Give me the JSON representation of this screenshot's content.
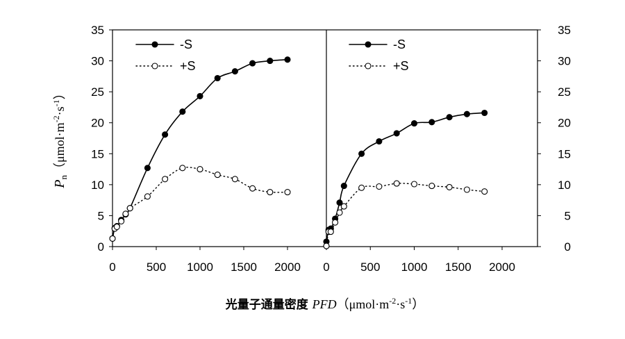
{
  "chart_data": {
    "type": "line",
    "xlabel": {
      "cn": "光量子通量密度 ",
      "italic": "PFD",
      "unit": "（μmol·m",
      "sup1": "-2",
      "mid": "·s",
      "sup2": "-1",
      "end": "）"
    },
    "ylabel": {
      "italic": "P",
      "sub": "n",
      "unit": "（μmol·m",
      "sup1": "-2",
      "mid": "·s",
      "sup2": "-1",
      "end": "）"
    },
    "ylim": [
      0,
      35
    ],
    "yticks": [
      "0",
      "5",
      "10",
      "15",
      "20",
      "25",
      "30",
      "35"
    ],
    "xlim": [
      0,
      2400
    ],
    "xticks": [
      "0",
      "500",
      "1000",
      "1500",
      "2000"
    ],
    "grid": false,
    "legend_position": "top-left",
    "panels": [
      {
        "series": [
          {
            "name": "-S",
            "style": "solid-filled",
            "color": "#000000",
            "x": [
              0,
              25,
              50,
              100,
              150,
              200,
              400,
              600,
              800,
              1000,
              1200,
              1400,
              1600,
              1800,
              2000
            ],
            "y": [
              1.3,
              3.0,
              3.3,
              4.3,
              5.2,
              6.2,
              12.7,
              18.1,
              21.8,
              24.3,
              27.2,
              28.3,
              29.6,
              30.0,
              30.2
            ]
          },
          {
            "name": "+S",
            "style": "dotted-open",
            "color": "#000000",
            "x": [
              0,
              25,
              50,
              100,
              150,
              200,
              400,
              600,
              800,
              1000,
              1200,
              1400,
              1600,
              1800,
              2000
            ],
            "y": [
              1.3,
              2.9,
              3.2,
              4.1,
              5.3,
              6.2,
              8.1,
              10.9,
              12.7,
              12.5,
              11.6,
              10.9,
              9.4,
              8.8,
              8.8
            ]
          }
        ]
      },
      {
        "series": [
          {
            "name": "-S",
            "style": "solid-filled",
            "color": "#000000",
            "x": [
              0,
              25,
              50,
              100,
              150,
              200,
              400,
              600,
              800,
              1000,
              1200,
              1400,
              1600,
              1800
            ],
            "y": [
              0.8,
              2.7,
              2.9,
              4.5,
              7.1,
              9.8,
              15.0,
              17.0,
              18.3,
              19.9,
              20.1,
              20.9,
              21.4,
              21.6
            ]
          },
          {
            "name": "+S",
            "style": "dotted-open",
            "color": "#000000",
            "x": [
              0,
              25,
              50,
              100,
              150,
              200,
              400,
              600,
              800,
              1000,
              1200,
              1400,
              1600,
              1800
            ],
            "y": [
              0.1,
              2.4,
              2.4,
              3.9,
              5.5,
              6.5,
              9.5,
              9.7,
              10.2,
              10.1,
              9.8,
              9.6,
              9.2,
              8.9
            ]
          }
        ]
      }
    ]
  }
}
